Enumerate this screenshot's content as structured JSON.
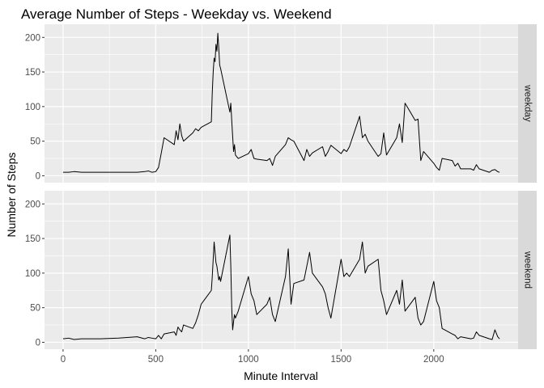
{
  "chart_data": {
    "type": "line",
    "title": "Average Number of Steps - Weekday vs. Weekend",
    "xlabel": "Minute Interval",
    "ylabel": "Number of Steps",
    "xlim": [
      -100,
      2455
    ],
    "ylim": [
      -10,
      219
    ],
    "x_ticks": [
      0,
      500,
      1000,
      1500,
      2000
    ],
    "y_ticks": [
      0,
      50,
      100,
      150,
      200
    ],
    "grid": true,
    "theme_colors": {
      "panel_bg": "#ebebeb",
      "grid": "#ffffff",
      "strip_bg": "#d9d9d9",
      "line": "#000000"
    },
    "series": [
      {
        "name": "weekday",
        "x": [
          0,
          30,
          60,
          100,
          200,
          300,
          400,
          440,
          460,
          480,
          500,
          515,
          530,
          545,
          600,
          610,
          620,
          630,
          640,
          650,
          700,
          715,
          730,
          745,
          800,
          805,
          810,
          815,
          820,
          825,
          830,
          835,
          840,
          845,
          850,
          900,
          905,
          910,
          915,
          920,
          925,
          930,
          945,
          1000,
          1015,
          1030,
          1045,
          1100,
          1115,
          1130,
          1145,
          1200,
          1215,
          1230,
          1245,
          1300,
          1315,
          1330,
          1345,
          1400,
          1415,
          1430,
          1445,
          1500,
          1515,
          1530,
          1545,
          1600,
          1615,
          1630,
          1645,
          1700,
          1715,
          1730,
          1745,
          1800,
          1815,
          1830,
          1845,
          1900,
          1915,
          1930,
          1945,
          2000,
          2015,
          2030,
          2045,
          2100,
          2115,
          2130,
          2145,
          2200,
          2215,
          2230,
          2245,
          2300,
          2315,
          2330,
          2345,
          2355
        ],
        "y": [
          5,
          5,
          6,
          5,
          5,
          5,
          5,
          6,
          7,
          5,
          6,
          12,
          33,
          55,
          45,
          65,
          52,
          75,
          58,
          50,
          62,
          68,
          65,
          70,
          78,
          120,
          150,
          170,
          165,
          190,
          180,
          206,
          185,
          160,
          155,
          92,
          105,
          80,
          57,
          35,
          45,
          30,
          25,
          32,
          38,
          25,
          24,
          22,
          25,
          15,
          28,
          45,
          55,
          52,
          50,
          22,
          38,
          28,
          33,
          42,
          28,
          35,
          44,
          32,
          38,
          35,
          42,
          86,
          55,
          60,
          50,
          28,
          32,
          62,
          30,
          55,
          75,
          48,
          105,
          80,
          82,
          22,
          35,
          18,
          12,
          8,
          25,
          22,
          14,
          18,
          10,
          10,
          8,
          16,
          10,
          5,
          8,
          9,
          6,
          5
        ]
      },
      {
        "name": "weekend",
        "x": [
          0,
          30,
          60,
          100,
          200,
          300,
          400,
          440,
          460,
          480,
          500,
          515,
          530,
          545,
          600,
          610,
          620,
          630,
          640,
          650,
          700,
          715,
          730,
          745,
          800,
          805,
          810,
          815,
          820,
          825,
          830,
          835,
          840,
          845,
          850,
          900,
          905,
          910,
          915,
          920,
          925,
          930,
          945,
          1000,
          1015,
          1030,
          1045,
          1100,
          1115,
          1130,
          1145,
          1200,
          1215,
          1230,
          1245,
          1300,
          1315,
          1330,
          1345,
          1400,
          1415,
          1430,
          1445,
          1500,
          1515,
          1530,
          1545,
          1600,
          1615,
          1630,
          1645,
          1700,
          1715,
          1730,
          1745,
          1800,
          1815,
          1830,
          1845,
          1900,
          1915,
          1930,
          1945,
          2000,
          2015,
          2030,
          2045,
          2100,
          2115,
          2130,
          2145,
          2200,
          2215,
          2230,
          2245,
          2300,
          2315,
          2330,
          2345,
          2355
        ],
        "y": [
          5,
          6,
          4,
          5,
          5,
          6,
          8,
          5,
          7,
          6,
          5,
          10,
          5,
          12,
          15,
          10,
          22,
          18,
          15,
          25,
          20,
          28,
          40,
          55,
          75,
          95,
          120,
          145,
          130,
          115,
          110,
          100,
          90,
          95,
          88,
          155,
          110,
          50,
          18,
          30,
          40,
          35,
          45,
          95,
          70,
          60,
          40,
          55,
          65,
          40,
          30,
          95,
          135,
          55,
          85,
          90,
          110,
          130,
          100,
          80,
          70,
          50,
          35,
          120,
          95,
          100,
          95,
          120,
          145,
          100,
          110,
          120,
          75,
          60,
          40,
          75,
          55,
          90,
          45,
          65,
          35,
          25,
          30,
          88,
          60,
          50,
          20,
          12,
          10,
          5,
          8,
          5,
          6,
          15,
          10,
          5,
          4,
          18,
          8,
          5
        ]
      }
    ]
  }
}
